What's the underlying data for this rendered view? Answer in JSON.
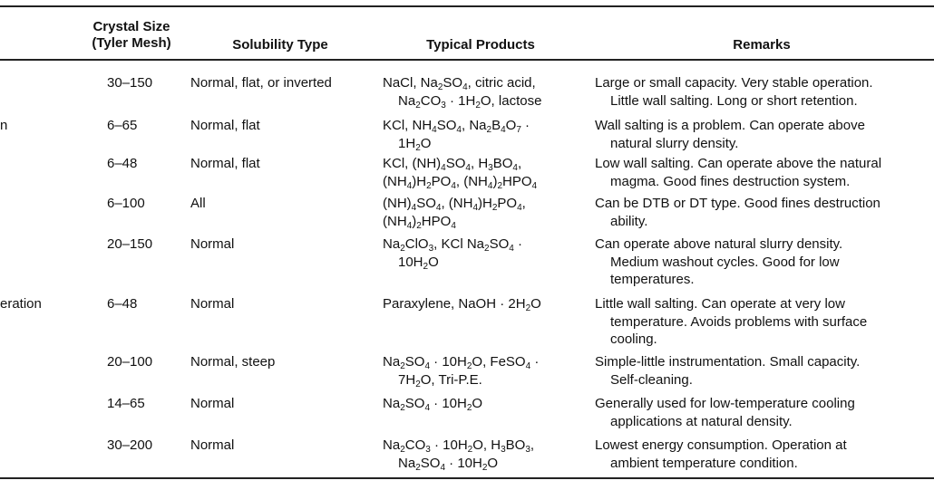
{
  "headers": {
    "size": "Crystal Size\n(Tyler Mesh)",
    "solubility": "Solubility Type",
    "products": "Typical Products",
    "remarks": "Remarks"
  },
  "rows": [
    {
      "type": "",
      "size": "30–150",
      "solubility": "Normal, flat, or inverted",
      "products": [
        "NaCl, Na_2SO_4, citric acid,",
        "Na_2CO_3 · 1H_2O, lactose"
      ],
      "remarks": [
        "Large or small capacity. Very stable operation.",
        "Little wall salting. Long or short retention."
      ]
    },
    {
      "type": "n",
      "size": "6–65",
      "solubility": "Normal, flat",
      "products": [
        "KCl, NH_4SO_4, Na_2B_4O_7 ·",
        "1H_2O"
      ],
      "remarks": [
        "Wall salting is a problem. Can operate above",
        "natural slurry density."
      ]
    },
    {
      "type": "",
      "size": "6–48",
      "solubility": "Normal, flat",
      "products": [
        "KCl, (NH)_4SO_4, H_3BO_4,",
        "(NH_4)H_2PO_4, (NH_4)_2HPO_4"
      ],
      "remarks": [
        "Low wall salting. Can operate above the natural",
        "magma. Good fines destruction system."
      ]
    },
    {
      "type": "",
      "size": "6–100",
      "solubility": "All",
      "products": [
        "(NH)_4SO_4, (NH_4)H_2PO_4,",
        "(NH_4)_2HPO_4"
      ],
      "remarks": [
        "Can be DTB or DT type. Good fines destruction",
        "ability."
      ]
    },
    {
      "type": "",
      "size": "20–150",
      "solubility": "Normal",
      "products": [
        "Na_2ClO_3, KCl Na_2SO_4 ·",
        "10H_2O"
      ],
      "remarks": [
        "Can operate above natural slurry density.",
        "Medium washout cycles. Good for low",
        "temperatures."
      ]
    },
    {
      "type": "eration",
      "size": "6–48",
      "solubility": "Normal",
      "products": [
        "Paraxylene, NaOH · 2H_2O"
      ],
      "remarks": [
        "Little wall salting. Can operate at very low",
        "temperature. Avoids problems with surface",
        "cooling."
      ]
    },
    {
      "type": "",
      "size": "20–100",
      "solubility": "Normal, steep",
      "products": [
        "Na_2SO_4 · 10H_2O, FeSO_4 ·",
        "7H_2O, Tri-P.E."
      ],
      "remarks": [
        "Simple-little instrumentation. Small capacity.",
        "Self-cleaning."
      ]
    },
    {
      "type": "",
      "size": "14–65",
      "solubility": "Normal",
      "products": [
        "Na_2SO_4 · 10H_2O"
      ],
      "remarks": [
        "Generally used for low-temperature cooling",
        "applications at natural density."
      ]
    },
    {
      "type": "",
      "size": "30–200",
      "solubility": "Normal",
      "products": [
        "Na_2CO_3 · 10H_2O, H_3BO_3,",
        "Na_2SO_4 · 10H_2O"
      ],
      "remarks": [
        "Lowest energy consumption. Operation at",
        "ambient temperature condition."
      ]
    }
  ]
}
